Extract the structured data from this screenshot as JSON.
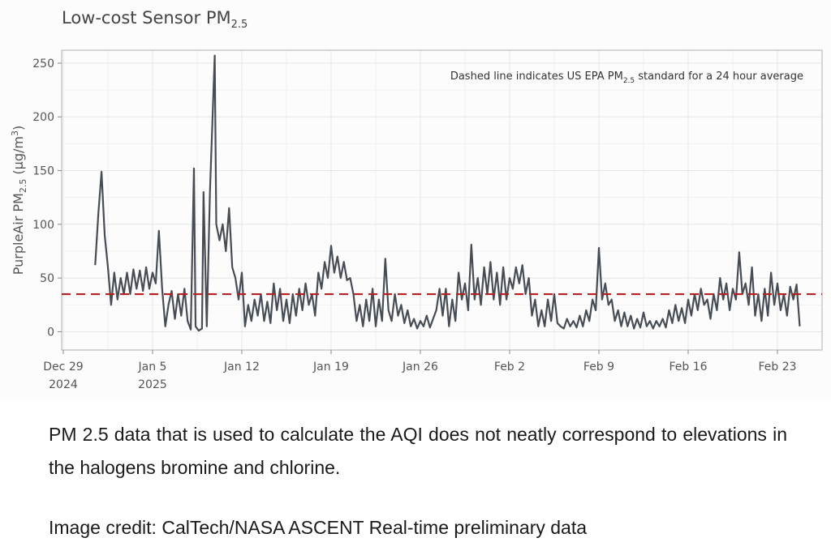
{
  "chart_data": {
    "type": "line",
    "title": "Low-cost Sensor PM",
    "title_sub": "2.5",
    "ylabel": "PurpleAir PM2.5 (µg/m3)",
    "ylabel_parts": {
      "pre": "PurpleAir PM",
      "sub": "2.5",
      "mid": " (µg/m",
      "sup": "3",
      "post": ")"
    },
    "annotation": {
      "pre": "Dashed line indicates US EPA PM",
      "sub": "2.5",
      "post": " standard for a 24 hour average"
    },
    "x_range": [
      "2024-12-28T21:00",
      "2025-02-26T12:00"
    ],
    "ylim": [
      -17,
      262
    ],
    "y_ticks": [
      0,
      50,
      100,
      150,
      200,
      250
    ],
    "x_ticks": [
      {
        "date": "2024-12-29",
        "label1": "Dec 29",
        "label2": "2024"
      },
      {
        "date": "2025-01-05",
        "label1": "Jan 5",
        "label2": "2025"
      },
      {
        "date": "2025-01-12",
        "label1": "Jan 12",
        "label2": ""
      },
      {
        "date": "2025-01-19",
        "label1": "Jan 19",
        "label2": ""
      },
      {
        "date": "2025-01-26",
        "label1": "Jan 26",
        "label2": ""
      },
      {
        "date": "2025-02-02",
        "label1": "Feb 2",
        "label2": ""
      },
      {
        "date": "2025-02-09",
        "label1": "Feb 9",
        "label2": ""
      },
      {
        "date": "2025-02-16",
        "label1": "Feb 16",
        "label2": ""
      },
      {
        "date": "2025-02-23",
        "label1": "Feb 23",
        "label2": ""
      }
    ],
    "grid": true,
    "threshold": {
      "value": 35,
      "style": "dashed",
      "color": "#b22222"
    },
    "series": [
      {
        "color": "#474d55",
        "points": [
          [
            "2024-12-31T12:00",
            62
          ],
          [
            "2024-12-31T18:00",
            110
          ],
          [
            "2025-01-01T00:00",
            149
          ],
          [
            "2025-01-01T06:00",
            90
          ],
          [
            "2025-01-01T12:00",
            60
          ],
          [
            "2025-01-01T18:00",
            25
          ],
          [
            "2025-01-02T00:00",
            55
          ],
          [
            "2025-01-02T06:00",
            30
          ],
          [
            "2025-01-02T12:00",
            50
          ],
          [
            "2025-01-02T18:00",
            35
          ],
          [
            "2025-01-03T00:00",
            55
          ],
          [
            "2025-01-03T06:00",
            35
          ],
          [
            "2025-01-03T12:00",
            58
          ],
          [
            "2025-01-03T18:00",
            40
          ],
          [
            "2025-01-04T00:00",
            57
          ],
          [
            "2025-01-04T06:00",
            38
          ],
          [
            "2025-01-04T12:00",
            60
          ],
          [
            "2025-01-04T18:00",
            40
          ],
          [
            "2025-01-05T00:00",
            55
          ],
          [
            "2025-01-05T06:00",
            45
          ],
          [
            "2025-01-05T12:00",
            94
          ],
          [
            "2025-01-05T18:00",
            40
          ],
          [
            "2025-01-06T00:00",
            5
          ],
          [
            "2025-01-06T06:00",
            25
          ],
          [
            "2025-01-06T12:00",
            38
          ],
          [
            "2025-01-06T18:00",
            12
          ],
          [
            "2025-01-07T00:00",
            35
          ],
          [
            "2025-01-07T06:00",
            15
          ],
          [
            "2025-01-07T12:00",
            40
          ],
          [
            "2025-01-07T18:00",
            10
          ],
          [
            "2025-01-08T00:00",
            2
          ],
          [
            "2025-01-08T06:00",
            152
          ],
          [
            "2025-01-08T09:00",
            5
          ],
          [
            "2025-01-08T15:00",
            1
          ],
          [
            "2025-01-08T21:00",
            3
          ],
          [
            "2025-01-09T00:00",
            130
          ],
          [
            "2025-01-09T06:00",
            5
          ],
          [
            "2025-01-09T12:00",
            130
          ],
          [
            "2025-01-09T21:00",
            257
          ],
          [
            "2025-01-10T00:00",
            100
          ],
          [
            "2025-01-10T06:00",
            85
          ],
          [
            "2025-01-10T12:00",
            100
          ],
          [
            "2025-01-10T18:00",
            75
          ],
          [
            "2025-01-11T00:00",
            115
          ],
          [
            "2025-01-11T06:00",
            60
          ],
          [
            "2025-01-11T12:00",
            50
          ],
          [
            "2025-01-11T18:00",
            30
          ],
          [
            "2025-01-12T00:00",
            55
          ],
          [
            "2025-01-12T06:00",
            5
          ],
          [
            "2025-01-12T12:00",
            25
          ],
          [
            "2025-01-12T18:00",
            10
          ],
          [
            "2025-01-13T00:00",
            30
          ],
          [
            "2025-01-13T06:00",
            15
          ],
          [
            "2025-01-13T12:00",
            35
          ],
          [
            "2025-01-13T18:00",
            10
          ],
          [
            "2025-01-14T00:00",
            28
          ],
          [
            "2025-01-14T06:00",
            8
          ],
          [
            "2025-01-14T12:00",
            45
          ],
          [
            "2025-01-14T18:00",
            20
          ],
          [
            "2025-01-15T00:00",
            40
          ],
          [
            "2025-01-15T06:00",
            10
          ],
          [
            "2025-01-15T12:00",
            30
          ],
          [
            "2025-01-15T18:00",
            8
          ],
          [
            "2025-01-16T00:00",
            35
          ],
          [
            "2025-01-16T06:00",
            15
          ],
          [
            "2025-01-16T12:00",
            40
          ],
          [
            "2025-01-16T18:00",
            20
          ],
          [
            "2025-01-17T00:00",
            45
          ],
          [
            "2025-01-17T06:00",
            25
          ],
          [
            "2025-01-17T12:00",
            35
          ],
          [
            "2025-01-17T18:00",
            15
          ],
          [
            "2025-01-18T00:00",
            55
          ],
          [
            "2025-01-18T06:00",
            40
          ],
          [
            "2025-01-18T12:00",
            65
          ],
          [
            "2025-01-18T18:00",
            50
          ],
          [
            "2025-01-19T00:00",
            80
          ],
          [
            "2025-01-19T06:00",
            55
          ],
          [
            "2025-01-19T12:00",
            70
          ],
          [
            "2025-01-19T18:00",
            50
          ],
          [
            "2025-01-20T00:00",
            65
          ],
          [
            "2025-01-20T06:00",
            48
          ],
          [
            "2025-01-20T12:00",
            50
          ],
          [
            "2025-01-20T18:00",
            35
          ],
          [
            "2025-01-21T00:00",
            10
          ],
          [
            "2025-01-21T06:00",
            25
          ],
          [
            "2025-01-21T12:00",
            5
          ],
          [
            "2025-01-21T18:00",
            30
          ],
          [
            "2025-01-22T00:00",
            10
          ],
          [
            "2025-01-22T06:00",
            40
          ],
          [
            "2025-01-22T12:00",
            5
          ],
          [
            "2025-01-22T18:00",
            30
          ],
          [
            "2025-01-23T00:00",
            10
          ],
          [
            "2025-01-23T06:00",
            68
          ],
          [
            "2025-01-23T12:00",
            20
          ],
          [
            "2025-01-23T18:00",
            10
          ],
          [
            "2025-01-24T00:00",
            35
          ],
          [
            "2025-01-24T06:00",
            15
          ],
          [
            "2025-01-24T12:00",
            25
          ],
          [
            "2025-01-24T18:00",
            8
          ],
          [
            "2025-01-25T00:00",
            20
          ],
          [
            "2025-01-25T06:00",
            5
          ],
          [
            "2025-01-25T12:00",
            12
          ],
          [
            "2025-01-25T18:00",
            3
          ],
          [
            "2025-01-26T00:00",
            10
          ],
          [
            "2025-01-26T06:00",
            5
          ],
          [
            "2025-01-26T12:00",
            15
          ],
          [
            "2025-01-26T18:00",
            4
          ],
          [
            "2025-01-27T00:00",
            12
          ],
          [
            "2025-01-27T06:00",
            20
          ],
          [
            "2025-01-27T12:00",
            40
          ],
          [
            "2025-01-27T18:00",
            15
          ],
          [
            "2025-01-28T00:00",
            40
          ],
          [
            "2025-01-28T06:00",
            5
          ],
          [
            "2025-01-28T12:00",
            30
          ],
          [
            "2025-01-28T18:00",
            10
          ],
          [
            "2025-01-29T00:00",
            55
          ],
          [
            "2025-01-29T06:00",
            30
          ],
          [
            "2025-01-29T12:00",
            45
          ],
          [
            "2025-01-29T18:00",
            20
          ],
          [
            "2025-01-30T00:00",
            81
          ],
          [
            "2025-01-30T06:00",
            30
          ],
          [
            "2025-01-30T12:00",
            50
          ],
          [
            "2025-01-30T18:00",
            25
          ],
          [
            "2025-01-31T00:00",
            60
          ],
          [
            "2025-01-31T06:00",
            35
          ],
          [
            "2025-01-31T12:00",
            65
          ],
          [
            "2025-01-31T18:00",
            30
          ],
          [
            "2025-02-01T00:00",
            55
          ],
          [
            "2025-02-01T06:00",
            25
          ],
          [
            "2025-02-01T12:00",
            60
          ],
          [
            "2025-02-01T18:00",
            30
          ],
          [
            "2025-02-02T00:00",
            50
          ],
          [
            "2025-02-02T06:00",
            40
          ],
          [
            "2025-02-02T12:00",
            60
          ],
          [
            "2025-02-02T18:00",
            45
          ],
          [
            "2025-02-03T00:00",
            62
          ],
          [
            "2025-02-03T06:00",
            35
          ],
          [
            "2025-02-03T12:00",
            50
          ],
          [
            "2025-02-03T18:00",
            15
          ],
          [
            "2025-02-04T00:00",
            30
          ],
          [
            "2025-02-04T06:00",
            5
          ],
          [
            "2025-02-04T12:00",
            20
          ],
          [
            "2025-02-04T18:00",
            5
          ],
          [
            "2025-02-05T00:00",
            30
          ],
          [
            "2025-02-05T06:00",
            10
          ],
          [
            "2025-02-05T12:00",
            35
          ],
          [
            "2025-02-05T18:00",
            8
          ],
          [
            "2025-02-06T00:00",
            5
          ],
          [
            "2025-02-06T06:00",
            3
          ],
          [
            "2025-02-06T12:00",
            12
          ],
          [
            "2025-02-06T18:00",
            5
          ],
          [
            "2025-02-07T00:00",
            10
          ],
          [
            "2025-02-07T06:00",
            4
          ],
          [
            "2025-02-07T12:00",
            15
          ],
          [
            "2025-02-07T18:00",
            5
          ],
          [
            "2025-02-08T00:00",
            20
          ],
          [
            "2025-02-08T06:00",
            10
          ],
          [
            "2025-02-08T12:00",
            30
          ],
          [
            "2025-02-08T18:00",
            20
          ],
          [
            "2025-02-09T00:00",
            78
          ],
          [
            "2025-02-09T06:00",
            30
          ],
          [
            "2025-02-09T12:00",
            45
          ],
          [
            "2025-02-09T18:00",
            25
          ],
          [
            "2025-02-10T00:00",
            30
          ],
          [
            "2025-02-10T06:00",
            10
          ],
          [
            "2025-02-10T12:00",
            20
          ],
          [
            "2025-02-10T18:00",
            5
          ],
          [
            "2025-02-11T00:00",
            18
          ],
          [
            "2025-02-11T06:00",
            5
          ],
          [
            "2025-02-11T12:00",
            15
          ],
          [
            "2025-02-11T18:00",
            3
          ],
          [
            "2025-02-12T00:00",
            12
          ],
          [
            "2025-02-12T06:00",
            4
          ],
          [
            "2025-02-12T12:00",
            18
          ],
          [
            "2025-02-12T18:00",
            5
          ],
          [
            "2025-02-13T00:00",
            10
          ],
          [
            "2025-02-13T06:00",
            3
          ],
          [
            "2025-02-13T12:00",
            10
          ],
          [
            "2025-02-13T18:00",
            5
          ],
          [
            "2025-02-14T00:00",
            12
          ],
          [
            "2025-02-14T06:00",
            4
          ],
          [
            "2025-02-14T12:00",
            20
          ],
          [
            "2025-02-14T18:00",
            8
          ],
          [
            "2025-02-15T00:00",
            25
          ],
          [
            "2025-02-15T06:00",
            10
          ],
          [
            "2025-02-15T12:00",
            22
          ],
          [
            "2025-02-15T18:00",
            8
          ],
          [
            "2025-02-16T00:00",
            30
          ],
          [
            "2025-02-16T06:00",
            15
          ],
          [
            "2025-02-16T12:00",
            35
          ],
          [
            "2025-02-16T18:00",
            20
          ],
          [
            "2025-02-17T00:00",
            40
          ],
          [
            "2025-02-17T06:00",
            25
          ],
          [
            "2025-02-17T12:00",
            30
          ],
          [
            "2025-02-17T18:00",
            12
          ],
          [
            "2025-02-18T00:00",
            35
          ],
          [
            "2025-02-18T06:00",
            20
          ],
          [
            "2025-02-18T12:00",
            50
          ],
          [
            "2025-02-18T18:00",
            30
          ],
          [
            "2025-02-19T00:00",
            45
          ],
          [
            "2025-02-19T06:00",
            20
          ],
          [
            "2025-02-19T12:00",
            40
          ],
          [
            "2025-02-19T18:00",
            30
          ],
          [
            "2025-02-20T00:00",
            74
          ],
          [
            "2025-02-20T06:00",
            35
          ],
          [
            "2025-02-20T12:00",
            45
          ],
          [
            "2025-02-20T18:00",
            25
          ],
          [
            "2025-02-21T00:00",
            60
          ],
          [
            "2025-02-21T06:00",
            15
          ],
          [
            "2025-02-21T12:00",
            35
          ],
          [
            "2025-02-21T18:00",
            10
          ],
          [
            "2025-02-22T00:00",
            40
          ],
          [
            "2025-02-22T06:00",
            15
          ],
          [
            "2025-02-22T12:00",
            55
          ],
          [
            "2025-02-22T18:00",
            25
          ],
          [
            "2025-02-23T00:00",
            45
          ],
          [
            "2025-02-23T06:00",
            20
          ],
          [
            "2025-02-23T12:00",
            35
          ],
          [
            "2025-02-23T18:00",
            15
          ],
          [
            "2025-02-24T00:00",
            42
          ],
          [
            "2025-02-24T06:00",
            30
          ],
          [
            "2025-02-24T12:00",
            44
          ],
          [
            "2025-02-24T18:00",
            5
          ]
        ]
      }
    ]
  },
  "caption": "PM 2.5 data that is used to calculate the AQI does not neatly correspond to elevations in the halogens bromine and chlorine.",
  "credit": "Image credit: CalTech/NASA ASCENT Real-time preliminary data"
}
